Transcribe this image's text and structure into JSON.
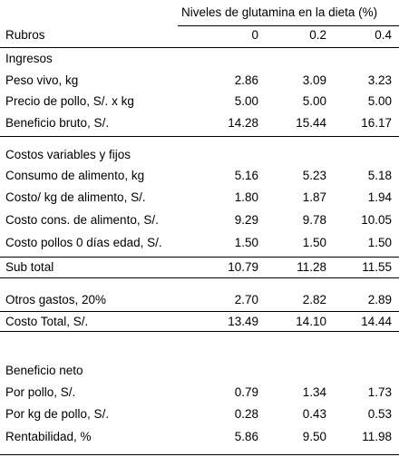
{
  "header": {
    "group_title": "Niveles de glutamina en la dieta (%)",
    "rubros": "Rubros",
    "levels": [
      "0",
      "0.2",
      "0.4"
    ]
  },
  "rows": [
    {
      "label": "Ingresos",
      "values": []
    },
    {
      "label": "Peso vivo, kg",
      "values": [
        "2.86",
        "3.09",
        "3.23"
      ]
    },
    {
      "label": "Precio de pollo, S/. x kg",
      "values": [
        "5.00",
        "5.00",
        "5.00"
      ]
    },
    {
      "label": "Beneficio bruto, S/.",
      "values": [
        "14.28",
        "15.44",
        "16.17"
      ]
    },
    {
      "label": "Costos variables y fijos",
      "values": []
    },
    {
      "label": "Consumo de alimento, kg",
      "values": [
        "5.16",
        "5.23",
        "5.18"
      ]
    },
    {
      "label": "Costo/ kg de alimento,  S/.",
      "values": [
        "1.80",
        "1.87",
        "1.94"
      ]
    },
    {
      "label": "Costo cons. de alimento, S/.",
      "values": [
        "9.29",
        "9.78",
        "10.05"
      ]
    },
    {
      "label": "Costo pollos 0 días edad, S/.",
      "values": [
        "1.50",
        "1.50",
        "1.50"
      ]
    },
    {
      "label": "Sub total",
      "values": [
        "10.79",
        "11.28",
        "11.55"
      ]
    },
    {
      "label": "Otros gastos, 20%",
      "values": [
        "2.70",
        "2.82",
        "2.89"
      ]
    },
    {
      "label": "Costo Total, S/.",
      "values": [
        "13.49",
        "14.10",
        "14.44"
      ]
    },
    {
      "label": "Beneficio neto",
      "values": []
    },
    {
      "label": "Por pollo, S/.",
      "values": [
        "0.79",
        "1.34",
        "1.73"
      ]
    },
    {
      "label": "Por kg de pollo,  S/.",
      "values": [
        "0.28",
        "0.43",
        "0.53"
      ]
    },
    {
      "label": "Rentabilidad, %",
      "values": [
        "5.86",
        "9.50",
        "11.98"
      ]
    }
  ]
}
